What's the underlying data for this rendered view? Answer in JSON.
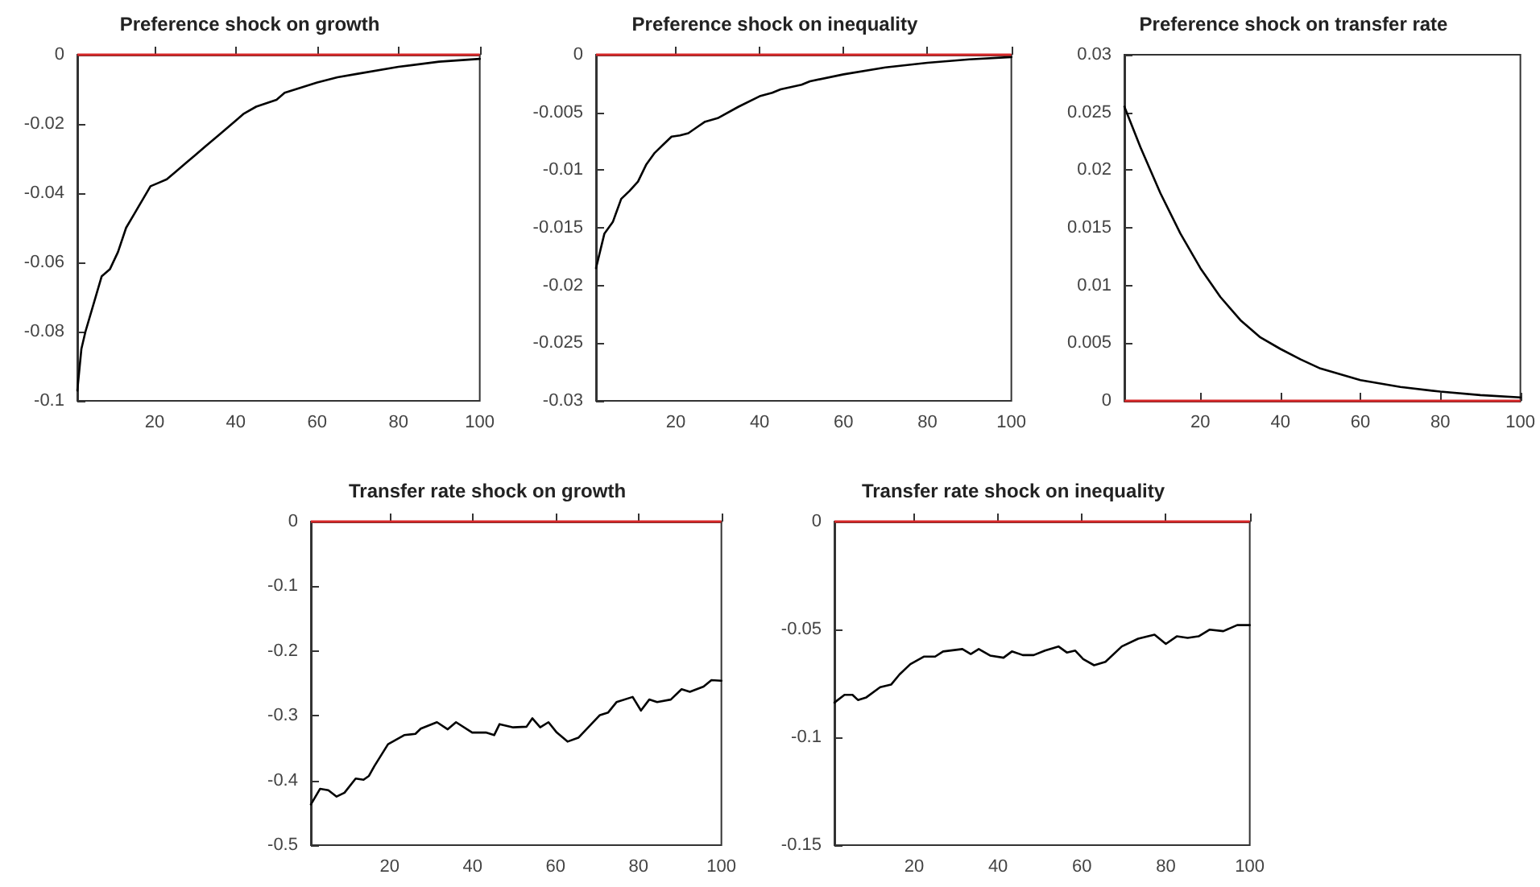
{
  "chart_data": [
    {
      "type": "line",
      "title": "Preference shock on growth",
      "x": [
        1,
        2,
        3,
        5,
        7,
        9,
        11,
        13,
        15,
        17,
        19,
        21,
        23,
        25,
        28,
        30,
        33,
        36,
        40,
        42,
        45,
        50,
        52,
        60,
        65,
        70,
        80,
        90,
        100
      ],
      "series": [
        {
          "color": "#000000",
          "values": [
            -0.097,
            -0.085,
            -0.08,
            -0.072,
            -0.064,
            -0.062,
            -0.057,
            -0.05,
            -0.046,
            -0.042,
            -0.038,
            -0.037,
            -0.036,
            -0.034,
            -0.031,
            -0.029,
            -0.026,
            -0.023,
            -0.019,
            -0.017,
            -0.015,
            -0.013,
            -0.011,
            -0.008,
            -0.0065,
            -0.0055,
            -0.0035,
            -0.002,
            -0.0012
          ]
        }
      ],
      "xlim": [
        1,
        100
      ],
      "xticks": [
        20,
        40,
        60,
        80,
        100
      ],
      "ylim": [
        -0.1,
        0
      ],
      "yticks": [
        -0.1,
        -0.08,
        -0.06,
        -0.04,
        -0.02,
        0
      ],
      "ref_lines": [
        {
          "axis": "y",
          "value": 0,
          "color": "#d62728"
        }
      ],
      "grid": false,
      "marker": "none",
      "line_style": "solid"
    },
    {
      "type": "line",
      "title": "Preference shock on inequality",
      "x": [
        1,
        2,
        3,
        5,
        7,
        9,
        11,
        13,
        15,
        17,
        19,
        21,
        23,
        25,
        27,
        30,
        35,
        40,
        43,
        45,
        50,
        52,
        60,
        70,
        80,
        90,
        100
      ],
      "series": [
        {
          "color": "#000000",
          "values": [
            -0.0185,
            -0.017,
            -0.0155,
            -0.0145,
            -0.0125,
            -0.0118,
            -0.011,
            -0.0095,
            -0.0085,
            -0.0078,
            -0.0071,
            -0.007,
            -0.0068,
            -0.0063,
            -0.0058,
            -0.0055,
            -0.0045,
            -0.0036,
            -0.0033,
            -0.003,
            -0.0026,
            -0.0023,
            -0.0017,
            -0.0011,
            -0.0007,
            -0.0004,
            -0.0002
          ]
        }
      ],
      "xlim": [
        1,
        100
      ],
      "xticks": [
        20,
        40,
        60,
        80,
        100
      ],
      "ylim": [
        -0.03,
        0
      ],
      "yticks": [
        -0.03,
        -0.025,
        -0.02,
        -0.015,
        -0.01,
        -0.005,
        0
      ],
      "ref_lines": [
        {
          "axis": "y",
          "value": 0,
          "color": "#d62728"
        }
      ],
      "grid": false,
      "marker": "none",
      "line_style": "solid"
    },
    {
      "type": "line",
      "title": "Preference shock on transfer rate",
      "x": [
        1,
        5,
        10,
        15,
        20,
        25,
        30,
        35,
        40,
        45,
        50,
        60,
        70,
        80,
        90,
        100
      ],
      "series": [
        {
          "color": "#000000",
          "values": [
            0.0255,
            0.022,
            0.018,
            0.0145,
            0.0115,
            0.009,
            0.007,
            0.0055,
            0.0045,
            0.0036,
            0.0028,
            0.0018,
            0.0012,
            0.0008,
            0.0005,
            0.0003
          ]
        }
      ],
      "xlim": [
        1,
        100
      ],
      "xticks": [
        20,
        40,
        60,
        80,
        100
      ],
      "ylim": [
        0,
        0.03
      ],
      "yticks": [
        0,
        0.005,
        0.01,
        0.015,
        0.02,
        0.025,
        0.03
      ],
      "ref_lines": [
        {
          "axis": "y",
          "value": 0,
          "color": "#d62728"
        }
      ],
      "grid": false,
      "marker": "none",
      "line_style": "solid"
    },
    {
      "type": "line",
      "title": "Transfer rate shock on growth",
      "x": [
        1,
        3.2,
        5.2,
        7.2,
        9.1,
        11.8,
        13.7,
        15,
        16.3,
        19.6,
        23.5,
        26.2,
        27.5,
        31.4,
        34,
        36,
        39.9,
        43.2,
        45.2,
        46.5,
        49.8,
        53,
        54.4,
        56.3,
        58.3,
        60.3,
        62.9,
        65.5,
        70.7,
        72.7,
        74.7,
        78.6,
        80.6,
        82.6,
        84.5,
        87.8,
        90.4,
        92.4,
        95.7,
        97.6,
        100
      ],
      "series": [
        {
          "color": "#000000",
          "values": [
            -0.437,
            -0.413,
            -0.415,
            -0.425,
            -0.419,
            -0.397,
            -0.399,
            -0.393,
            -0.378,
            -0.344,
            -0.33,
            -0.328,
            -0.32,
            -0.31,
            -0.321,
            -0.31,
            -0.326,
            -0.326,
            -0.33,
            -0.313,
            -0.318,
            -0.317,
            -0.304,
            -0.318,
            -0.31,
            -0.326,
            -0.34,
            -0.334,
            -0.299,
            -0.295,
            -0.279,
            -0.271,
            -0.292,
            -0.275,
            -0.279,
            -0.275,
            -0.259,
            -0.263,
            -0.255,
            -0.245,
            -0.246
          ]
        }
      ],
      "xlim": [
        1,
        100
      ],
      "xticks": [
        20,
        40,
        60,
        80,
        100
      ],
      "ylim": [
        -0.5,
        0
      ],
      "yticks": [
        -0.5,
        -0.4,
        -0.3,
        -0.2,
        -0.1,
        0
      ],
      "ref_lines": [
        {
          "axis": "y",
          "value": 0,
          "color": "#d62728"
        }
      ],
      "grid": false,
      "marker": "none",
      "line_style": "solid"
    },
    {
      "type": "line",
      "title": "Transfer rate shock on inequality",
      "x": [
        1,
        3.4,
        5.3,
        6.6,
        8.6,
        11.9,
        14.5,
        16.5,
        19.1,
        22.3,
        25,
        26.9,
        31.5,
        33.5,
        35.4,
        38.1,
        41.3,
        43.3,
        45.9,
        48.5,
        51.2,
        54.4,
        56.4,
        58.4,
        60.3,
        62.9,
        65.6,
        69.5,
        73.4,
        77.3,
        80,
        82.6,
        85.2,
        87.8,
        90.4,
        93.7,
        97,
        100
      ],
      "series": [
        {
          "color": "#000000",
          "values": [
            -0.0839,
            -0.0803,
            -0.0803,
            -0.0827,
            -0.0815,
            -0.0768,
            -0.0756,
            -0.0709,
            -0.0661,
            -0.0626,
            -0.0626,
            -0.0602,
            -0.0591,
            -0.0614,
            -0.0591,
            -0.0621,
            -0.0631,
            -0.0602,
            -0.0619,
            -0.0619,
            -0.0598,
            -0.0579,
            -0.0607,
            -0.0598,
            -0.0638,
            -0.0666,
            -0.065,
            -0.0579,
            -0.0543,
            -0.0524,
            -0.0567,
            -0.0532,
            -0.0539,
            -0.0532,
            -0.0501,
            -0.0508,
            -0.048,
            -0.048
          ]
        }
      ],
      "xlim": [
        1,
        100
      ],
      "xticks": [
        20,
        40,
        60,
        80,
        100
      ],
      "ylim": [
        -0.15,
        0
      ],
      "yticks": [
        -0.15,
        -0.1,
        -0.05,
        0
      ],
      "ref_lines": [
        {
          "axis": "y",
          "value": 0,
          "color": "#d62728"
        }
      ],
      "grid": false,
      "marker": "none",
      "line_style": "solid"
    }
  ]
}
